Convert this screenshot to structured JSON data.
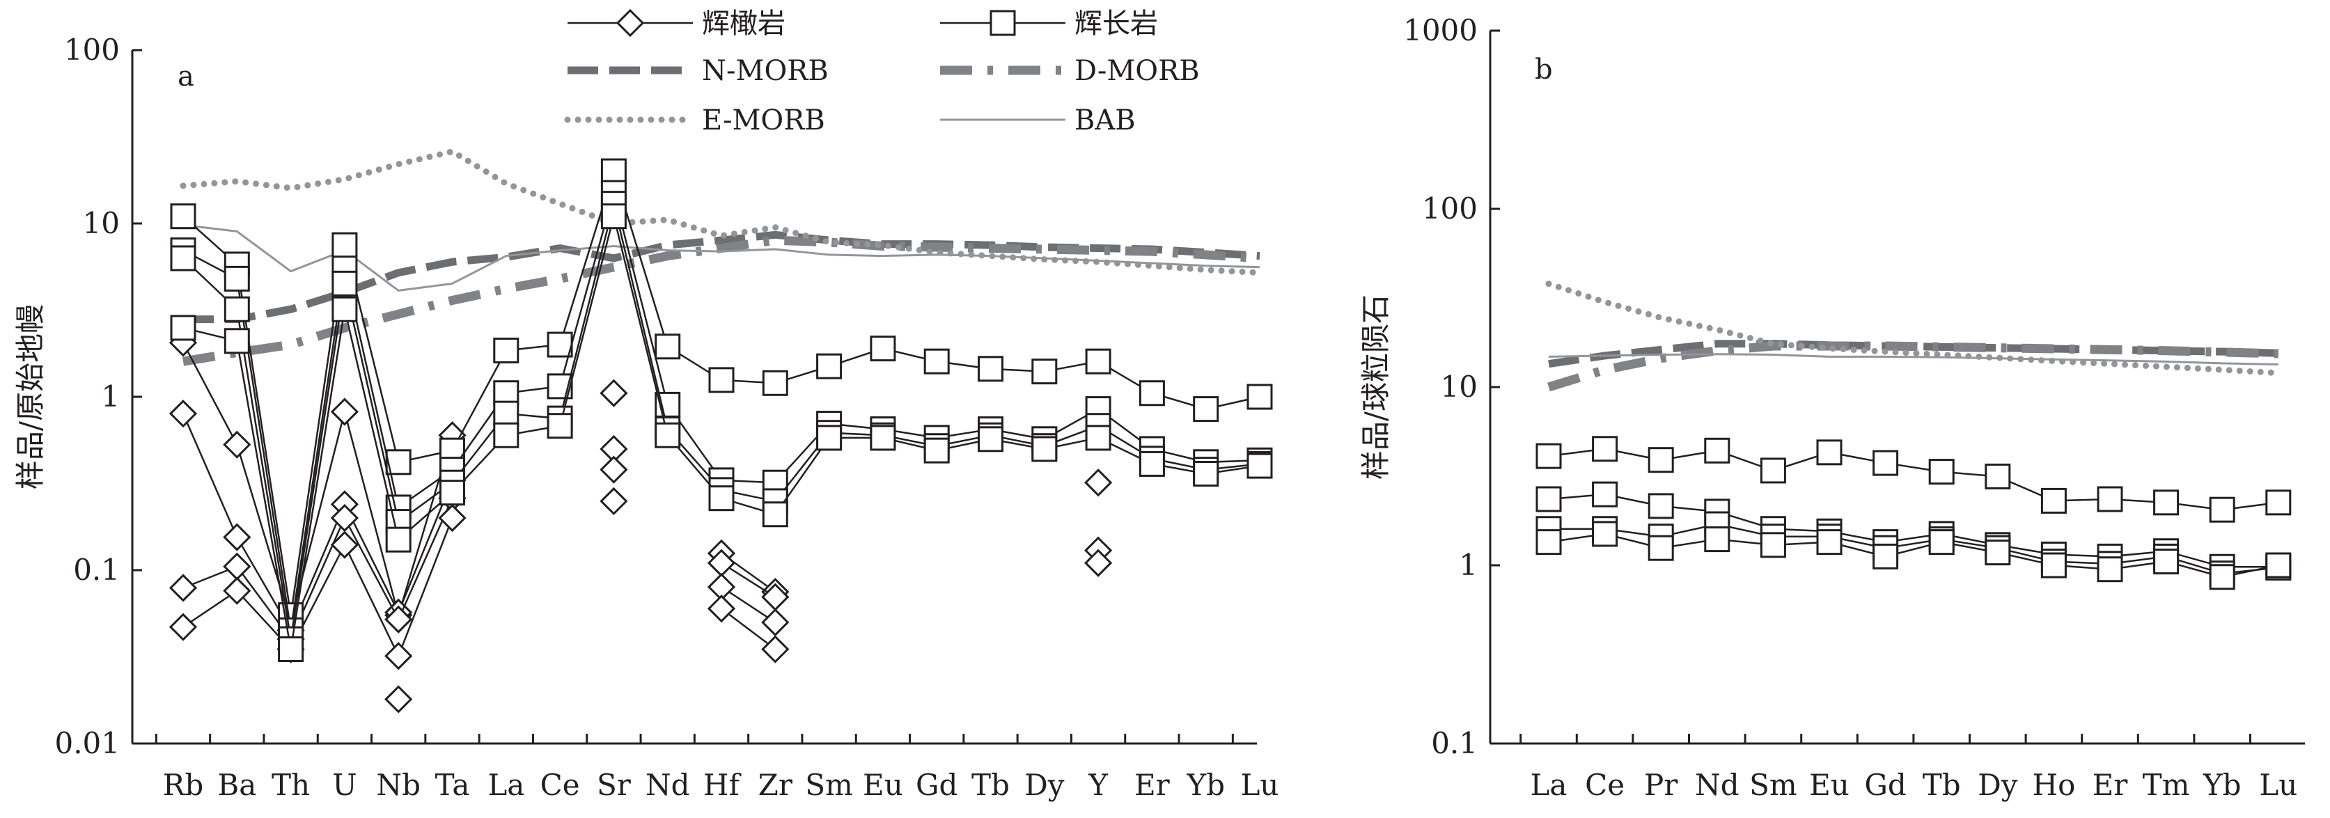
{
  "legend": [
    {
      "label": "辉橄岩",
      "style": "diamond"
    },
    {
      "label": "辉长岩",
      "style": "square"
    },
    {
      "label": "N-MORB",
      "style": "dash"
    },
    {
      "label": "D-MORB",
      "style": "dashdot"
    },
    {
      "label": "E-MORB",
      "style": "dotted"
    },
    {
      "label": "BAB",
      "style": "thin"
    }
  ],
  "chart_data": [
    {
      "type": "line",
      "panel_label": "a",
      "ylabel": "样品/原始地幔",
      "yscale": "log",
      "ylim": [
        0.01,
        100
      ],
      "yticks": [
        "0.01",
        "0.1",
        "1",
        "10",
        "100"
      ],
      "categories": [
        "Rb",
        "Ba",
        "Th",
        "U",
        "Nb",
        "Ta",
        "La",
        "Ce",
        "Sr",
        "Nd",
        "Hf",
        "Zr",
        "Sm",
        "Eu",
        "Gd",
        "Tb",
        "Dy",
        "Y",
        "Er",
        "Yb",
        "Lu"
      ],
      "reference_series": [
        {
          "name": "N-MORB",
          "style": "dash",
          "color": "#6d6e71",
          "values": [
            2.8,
            2.8,
            3.2,
            4.0,
            5.2,
            6.0,
            6.4,
            7.2,
            6.3,
            7.5,
            8.0,
            8.6,
            8.0,
            7.6,
            7.6,
            7.5,
            7.3,
            7.2,
            7.1,
            6.8,
            6.5
          ]
        },
        {
          "name": "D-MORB",
          "style": "dashdot",
          "color": "#808285",
          "values": [
            1.6,
            1.8,
            2.0,
            2.5,
            3.0,
            3.6,
            4.2,
            4.8,
            5.6,
            6.5,
            7.2,
            8.0,
            7.8,
            7.4,
            7.3,
            7.2,
            7.1,
            7.0,
            6.9,
            6.6,
            6.3
          ]
        },
        {
          "name": "E-MORB",
          "style": "dotted",
          "color": "#939598",
          "values": [
            16.5,
            17.5,
            16.0,
            18.0,
            22.0,
            26.0,
            17.0,
            13.0,
            10.0,
            10.5,
            8.5,
            9.5,
            7.8,
            7.5,
            6.8,
            6.5,
            6.2,
            6.0,
            5.7,
            5.4,
            5.2
          ]
        },
        {
          "name": "BAB",
          "style": "thin",
          "color": "#939598",
          "values": [
            9.8,
            9.0,
            5.3,
            7.0,
            4.1,
            4.5,
            6.5,
            7.0,
            7.4,
            7.0,
            6.9,
            7.1,
            6.6,
            6.5,
            6.6,
            6.5,
            6.3,
            6.1,
            5.9,
            5.7,
            5.6
          ]
        }
      ],
      "gabbro_series": [
        {
          "name": "辉长岩",
          "values": [
            11.0,
            5.8,
            0.055,
            7.5,
            0.42,
            0.49,
            1.85,
            2.0,
            20.0,
            1.95,
            1.25,
            1.2,
            1.5,
            1.9,
            1.6,
            1.45,
            1.4,
            1.6,
            1.05,
            0.85,
            1.0
          ]
        },
        {
          "name": "辉长岩",
          "values": [
            7.0,
            4.8,
            0.045,
            5.5,
            0.23,
            0.38,
            1.05,
            1.15,
            15.0,
            0.9,
            0.33,
            0.32,
            0.7,
            0.65,
            0.58,
            0.65,
            0.57,
            0.85,
            0.5,
            0.42,
            0.43
          ]
        },
        {
          "name": "辉长岩",
          "values": [
            6.3,
            3.2,
            0.04,
            4.5,
            0.19,
            0.32,
            0.8,
            0.75,
            13.0,
            0.65,
            0.29,
            0.25,
            0.62,
            0.6,
            0.52,
            0.6,
            0.52,
            0.68,
            0.44,
            0.38,
            0.41
          ]
        },
        {
          "name": "辉长岩",
          "values": [
            2.5,
            2.1,
            0.035,
            3.2,
            0.15,
            0.28,
            0.6,
            0.68,
            11.0,
            0.6,
            0.26,
            0.21,
            0.58,
            0.58,
            0.49,
            0.57,
            0.5,
            0.58,
            0.41,
            0.36,
            0.4
          ]
        }
      ],
      "peridotite_series": [
        {
          "name": "辉橄岩",
          "values": [
            2.05,
            0.53,
            0.05,
            0.82,
            0.055,
            0.6,
            null,
            null,
            1.05,
            null,
            0.125,
            0.075,
            null,
            null,
            null,
            null,
            null,
            0.32,
            null,
            null,
            null
          ]
        },
        {
          "name": "辉橄岩",
          "values": [
            0.8,
            0.155,
            0.045,
            0.24,
            0.057,
            0.33,
            null,
            null,
            0.5,
            null,
            0.11,
            0.07,
            null,
            null,
            null,
            null,
            null,
            0.13,
            null,
            null,
            null
          ]
        },
        {
          "name": "辉橄岩",
          "values": [
            0.079,
            0.105,
            0.04,
            0.2,
            0.052,
            0.26,
            null,
            null,
            0.38,
            null,
            0.08,
            0.05,
            null,
            null,
            null,
            null,
            null,
            0.11,
            null,
            null,
            null
          ]
        },
        {
          "name": "辉橄岩",
          "values": [
            0.047,
            0.076,
            0.035,
            0.14,
            0.032,
            0.2,
            null,
            null,
            0.25,
            null,
            0.06,
            0.035,
            null,
            null,
            null,
            null,
            null,
            null,
            null,
            null,
            null
          ]
        },
        {
          "name": "辉橄岩",
          "values": [
            null,
            null,
            null,
            null,
            0.018,
            null,
            null,
            null,
            null,
            null,
            null,
            null,
            null,
            null,
            null,
            null,
            null,
            null,
            null,
            null,
            null
          ]
        }
      ]
    },
    {
      "type": "line",
      "panel_label": "b",
      "ylabel": "样品/球粒陨石",
      "yscale": "log",
      "ylim": [
        0.1,
        1000
      ],
      "yticks": [
        "0.1",
        "1",
        "10",
        "100",
        "1000"
      ],
      "categories": [
        "La",
        "Ce",
        "Pr",
        "Nd",
        "Sm",
        "Eu",
        "Gd",
        "Tb",
        "Dy",
        "Ho",
        "Er",
        "Tm",
        "Yb",
        "Lu"
      ],
      "reference_series": [
        {
          "name": "N-MORB",
          "style": "dash",
          "color": "#6d6e71",
          "values": [
            13.5,
            15.0,
            16.2,
            17.5,
            17.5,
            17.2,
            17.0,
            16.8,
            16.6,
            16.4,
            16.2,
            16.0,
            15.8,
            15.5
          ]
        },
        {
          "name": "D-MORB",
          "style": "dashdot",
          "color": "#808285",
          "values": [
            10.0,
            12.5,
            14.5,
            16.0,
            17.0,
            17.0,
            17.0,
            16.8,
            16.6,
            16.4,
            16.2,
            16.0,
            15.7,
            15.4
          ]
        },
        {
          "name": "E-MORB",
          "style": "dotted",
          "color": "#939598",
          "values": [
            38.0,
            30.0,
            24.5,
            21.0,
            17.5,
            16.5,
            15.8,
            15.2,
            14.6,
            14.0,
            13.5,
            13.0,
            12.5,
            12.0
          ]
        },
        {
          "name": "BAB",
          "style": "thin",
          "color": "#939598",
          "values": [
            14.8,
            15.0,
            15.2,
            15.3,
            15.2,
            14.8,
            14.8,
            14.7,
            14.5,
            14.3,
            14.1,
            13.9,
            13.6,
            13.4
          ]
        }
      ],
      "gabbro_series": [
        {
          "name": "辉长岩",
          "values": [
            4.1,
            4.5,
            3.9,
            4.4,
            3.4,
            4.3,
            3.75,
            3.35,
            3.15,
            2.3,
            2.35,
            2.25,
            2.05,
            2.25
          ]
        },
        {
          "name": "辉长岩",
          "values": [
            2.35,
            2.5,
            2.15,
            2.0,
            1.6,
            1.55,
            1.35,
            1.5,
            1.3,
            1.15,
            1.12,
            1.2,
            0.98,
            0.98
          ]
        },
        {
          "name": "辉长岩",
          "values": [
            1.6,
            1.6,
            1.45,
            1.7,
            1.45,
            1.45,
            1.25,
            1.4,
            1.25,
            1.05,
            1.02,
            1.12,
            0.9,
            0.97
          ]
        },
        {
          "name": "辉长岩",
          "values": [
            1.35,
            1.5,
            1.25,
            1.4,
            1.3,
            1.35,
            1.12,
            1.35,
            1.18,
            1.0,
            0.95,
            1.05,
            0.86,
            1.0
          ]
        }
      ],
      "peridotite_series": []
    }
  ]
}
